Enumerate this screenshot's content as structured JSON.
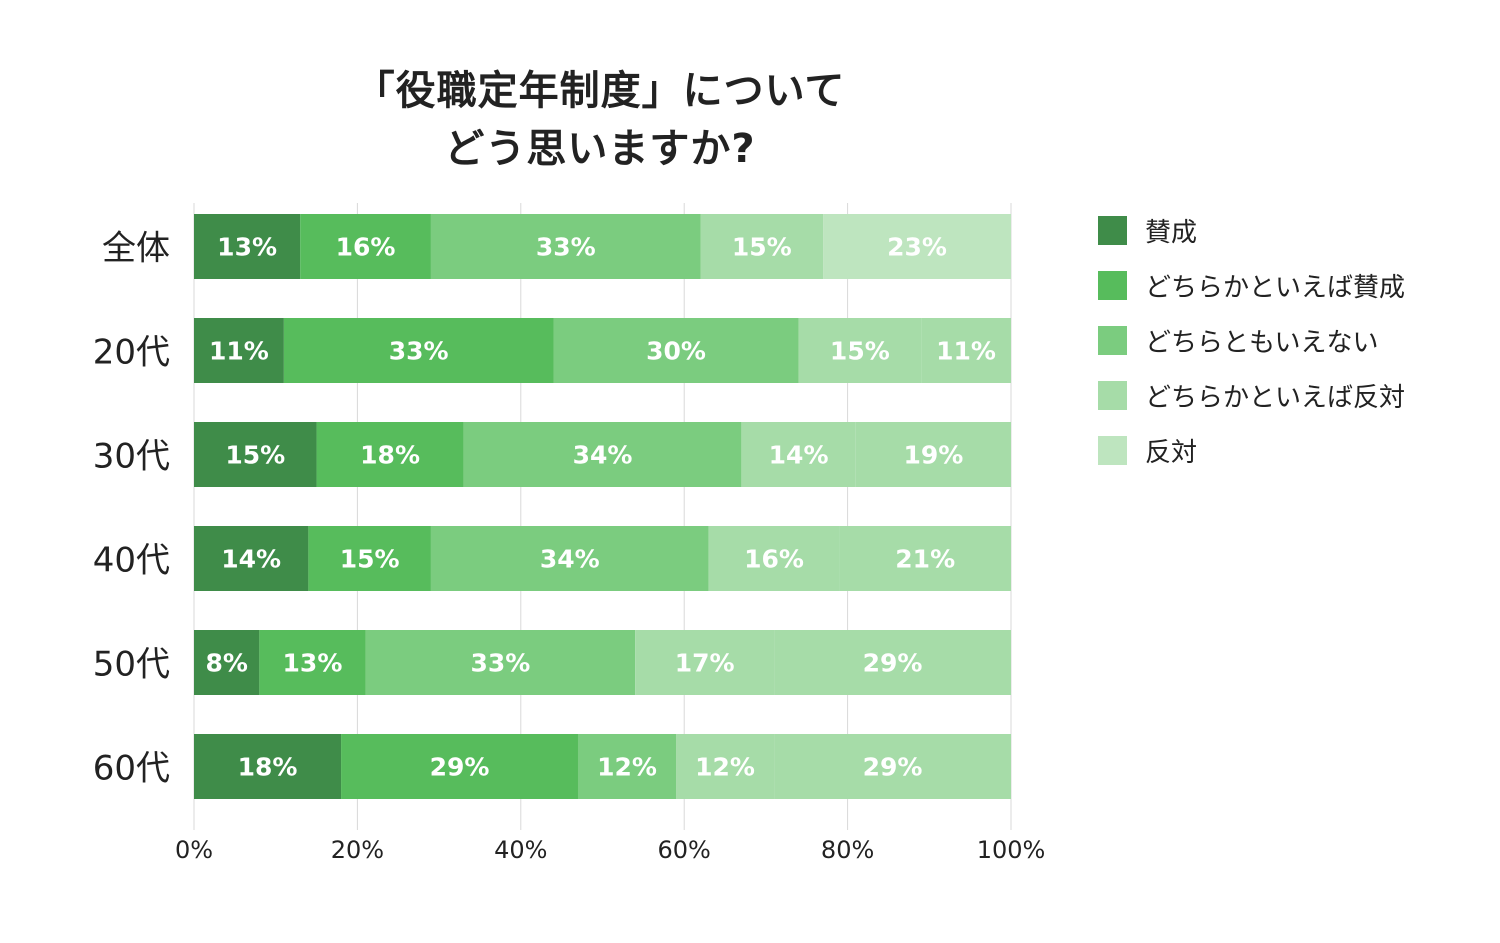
{
  "chart_data": {
    "type": "bar",
    "orientation": "horizontal",
    "stacked": true,
    "title": [
      "「役職定年制度」について",
      "どう思いますか?"
    ],
    "categories": [
      "全体",
      "20代",
      "30代",
      "40代",
      "50代",
      "60代"
    ],
    "series": [
      {
        "name": "賛成",
        "color": "#3f8c49",
        "values": [
          13,
          11,
          15,
          14,
          8,
          18
        ]
      },
      {
        "name": "どちらかといえば賛成",
        "color": "#57bc5c",
        "values": [
          16,
          33,
          18,
          15,
          13,
          29
        ]
      },
      {
        "name": "どちらともいえない",
        "color": "#7bcc7f",
        "values": [
          33,
          30,
          34,
          34,
          33,
          12
        ]
      },
      {
        "name": "どちらかといえば反対",
        "color": "#a6dca8",
        "values": [
          15,
          15,
          14,
          16,
          17,
          12
        ]
      },
      {
        "name": "反対",
        "color": "#bee5bf",
        "values": [
          23,
          11,
          19,
          21,
          29,
          29
        ]
      }
    ],
    "segment_colors": [
      [
        "#3f8c49",
        "#57bc5c",
        "#7bcc7f",
        "#a6dca8",
        "#bee5bf"
      ],
      [
        "#3f8c49",
        "#57bc5c",
        "#7bcc7f",
        "#a6dca8",
        "#a6dca8"
      ],
      [
        "#3f8c49",
        "#57bc5c",
        "#7bcc7f",
        "#a6dca8",
        "#a6dca8"
      ],
      [
        "#3f8c49",
        "#57bc5c",
        "#7bcc7f",
        "#a6dca8",
        "#a6dca8"
      ],
      [
        "#3f8c49",
        "#57bc5c",
        "#7bcc7f",
        "#a6dca8",
        "#a6dca8"
      ],
      [
        "#3f8c49",
        "#57bc5c",
        "#7bcc7f",
        "#a6dca8",
        "#a6dca8"
      ]
    ],
    "x_ticks": [
      0,
      20,
      40,
      60,
      80,
      100
    ],
    "x_tick_labels": [
      "0%",
      "20%",
      "40%",
      "60%",
      "80%",
      "100%"
    ],
    "xlim": [
      0,
      100
    ],
    "value_suffix": "%",
    "grid": true,
    "legend_position": "right",
    "colors": {
      "text": "#222222",
      "gridline": "#d9d9d9",
      "value_label": "#ffffff"
    }
  }
}
